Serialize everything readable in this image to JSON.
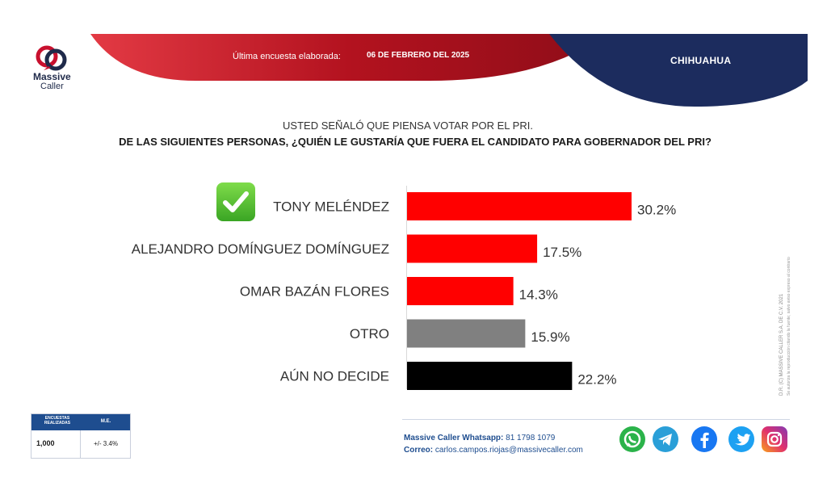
{
  "brand": {
    "name_line1": "Massive",
    "name_line2": "Caller"
  },
  "header": {
    "survey_label": "Última encuesta elaborada:",
    "survey_date": "06 DE FEBRERO DEL 2025",
    "state": "CHIHUAHUA"
  },
  "question": {
    "line1": "USTED SEÑALÓ QUE PIENSA VOTAR POR EL PRI.",
    "line2": "DE LAS SIGUIENTES PERSONAS, ¿QUIÉN LE GUSTARÍA QUE FUERA EL CANDIDATO PARA GOBERNADOR DEL PRI?"
  },
  "chart_data": {
    "type": "bar",
    "orientation": "horizontal",
    "categories": [
      "TONY MELÉNDEZ",
      "ALEJANDRO DOMÍNGUEZ DOMÍNGUEZ",
      "OMAR BAZÁN FLORES",
      "OTRO",
      "AÚN NO DECIDE"
    ],
    "values": [
      30.2,
      17.5,
      14.3,
      15.9,
      22.2
    ],
    "value_labels": [
      "30.2%",
      "17.5%",
      "14.3%",
      "15.9%",
      "22.2%"
    ],
    "colors": [
      "#ff0000",
      "#ff0000",
      "#ff0000",
      "#808080",
      "#000000"
    ],
    "highlighted_category": "TONY MELÉNDEZ",
    "xlim": [
      0,
      30.2
    ],
    "grid": false,
    "legend": "none"
  },
  "copyright": {
    "line1": "D.R. (C) MASSIVE CALLER S.A. DE C.V. 2021",
    "line2": "Se autoriza la reproducción citando la fuente; salvo aviso expreso al contrario"
  },
  "stats": {
    "header_surveys": "ENCUESTAS REALIZADAS",
    "header_me": "M.E.",
    "surveys": "1,000",
    "margin": "+/- 3.4%"
  },
  "contact": {
    "whatsapp_label": "Massive Caller Whatsapp:",
    "whatsapp_number": "81 1798 1079",
    "email_label": "Correo:",
    "email": "carlos.campos.riojas@massivecaller.com"
  },
  "social_icons": [
    "whatsapp-icon",
    "telegram-icon",
    "facebook-icon",
    "twitter-icon",
    "instagram-icon"
  ],
  "colors": {
    "header_red": "#b51226",
    "header_blue": "#1c2c5e",
    "accent_blue": "#1e4d8f"
  }
}
